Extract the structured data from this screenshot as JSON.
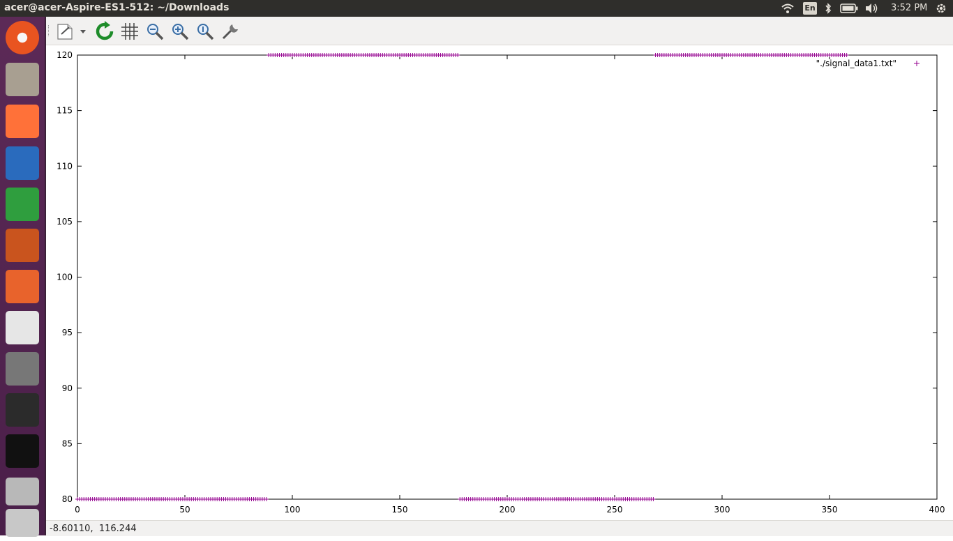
{
  "window": {
    "title": "acer@acer-Aspire-ES1-512: ~/Downloads"
  },
  "panel": {
    "language": "En",
    "clock": "3:52 PM",
    "icons": [
      "wifi-icon",
      "bluetooth-icon",
      "battery-icon",
      "volume-icon",
      "power-gear-icon"
    ]
  },
  "launcher": {
    "items": [
      {
        "name": "ubuntu-dash-icon",
        "color": "#e95420"
      },
      {
        "name": "files-icon",
        "color": "#a89f91"
      },
      {
        "name": "firefox-icon",
        "color": "#ff7139"
      },
      {
        "name": "libreoffice-writer-icon",
        "color": "#2a6bbd"
      },
      {
        "name": "libreoffice-calc-icon",
        "color": "#2f9e3e"
      },
      {
        "name": "libreoffice-impress-icon",
        "color": "#c9541e"
      },
      {
        "name": "software-center-icon",
        "color": "#e8632c"
      },
      {
        "name": "amazon-icon",
        "color": "#e6e6e6"
      },
      {
        "name": "system-settings-icon",
        "color": "#777777"
      },
      {
        "name": "terminal-icon",
        "color": "#2b2b2b"
      },
      {
        "name": "gnuplot-icon",
        "color": "#111111"
      },
      {
        "name": "disk-drive-icon",
        "color": "#b8b8b8"
      },
      {
        "name": "dvd-drive-icon",
        "color": "#c8c8c8"
      }
    ]
  },
  "toolbar": {
    "buttons": [
      "export-icon",
      "export-dropdown-icon",
      "replot-icon",
      "grid-icon",
      "zoom-out-icon",
      "zoom-in-icon",
      "zoom-reset-icon",
      "settings-wrench-icon"
    ]
  },
  "chart_data": {
    "type": "scatter",
    "title": "",
    "xlabel": "",
    "ylabel": "",
    "xlim": [
      0,
      400
    ],
    "ylim": [
      80,
      120
    ],
    "x_ticks": [
      "0",
      "50",
      "100",
      "150",
      "200",
      "250",
      "300",
      "350",
      "400"
    ],
    "y_ticks": [
      "80",
      "85",
      "90",
      "95",
      "100",
      "105",
      "110",
      "115",
      "120"
    ],
    "marker": "+",
    "color": "#94008f",
    "legend": {
      "label": "\"./signal_data1.txt\"",
      "position": "top-right"
    },
    "series": [
      {
        "name": "\"./signal_data1.txt\"",
        "segments": [
          {
            "x_start": 0,
            "x_end": 88,
            "y": 80
          },
          {
            "x_start": 89,
            "x_end": 177,
            "y": 120
          },
          {
            "x_start": 178,
            "x_end": 268,
            "y": 80
          },
          {
            "x_start": 269,
            "x_end": 358,
            "y": 120
          }
        ],
        "step": 1
      }
    ],
    "grid": false
  },
  "status": {
    "coordinates": "-8.60110,  116.244"
  }
}
